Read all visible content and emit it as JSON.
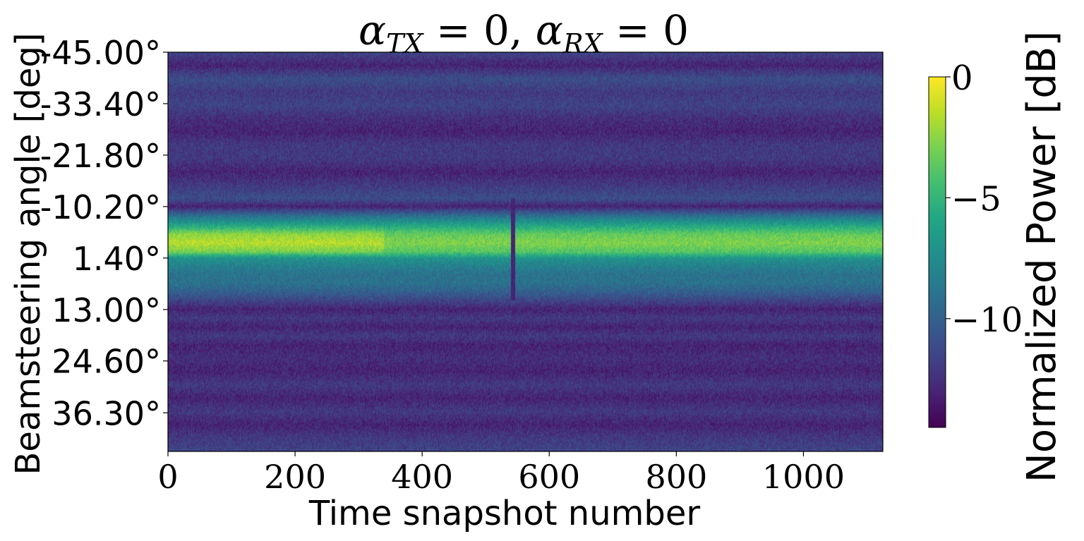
{
  "chart_data": {
    "type": "heatmap",
    "title": "α_TX = 0, α_RX = 0",
    "title_parts": {
      "alpha_tx": "α",
      "tx_sub": "TX",
      "eq1": " = 0, ",
      "alpha_rx": "α",
      "rx_sub": "RX",
      "eq2": " = 0"
    },
    "xlabel": "Time snapshot number",
    "ylabel": "Beamsteering angle [deg]",
    "xlim": [
      0,
      1125
    ],
    "x_ticks": [
      0,
      200,
      400,
      600,
      800,
      1000
    ],
    "ylim_deg": [
      -45.0,
      45.0
    ],
    "y_ticks": [
      -45.0,
      -33.4,
      -21.8,
      -10.2,
      1.4,
      13.0,
      24.6,
      36.3
    ],
    "y_tick_labels": [
      "-45.00°",
      "-33.40°",
      "-21.80°",
      "-10.20°",
      "1.40°",
      "13.00°",
      "24.60°",
      "36.30°"
    ],
    "colorbar": {
      "label": "Normalized Power [dB]",
      "range": [
        -14.5,
        0
      ],
      "ticks": [
        0,
        -5,
        -10
      ],
      "tick_labels": [
        "0",
        "−5",
        "−10"
      ],
      "colormap": "viridis"
    },
    "power_profile_db": {
      "angles_deg": [
        -45,
        -42,
        -39,
        -36,
        -33,
        -30,
        -27,
        -24,
        -21,
        -18,
        -15,
        -12,
        -10.2,
        -8,
        -6,
        -4,
        -2,
        0,
        1.4,
        3,
        5,
        7,
        9,
        11,
        13,
        15,
        17,
        19,
        21,
        24,
        27,
        30,
        33,
        36,
        39,
        42,
        45
      ],
      "power_db": [
        -11.5,
        -13,
        -11,
        -12,
        -11.5,
        -12.5,
        -13,
        -12,
        -12,
        -13,
        -12,
        -11,
        -13,
        -9,
        -6,
        -2.5,
        -1.5,
        -3,
        -7,
        -8,
        -9,
        -9,
        -10,
        -11.5,
        -13,
        -12,
        -13,
        -12,
        -13,
        -12.5,
        -13,
        -12,
        -13,
        -12,
        -13,
        -12,
        -11.5
      ]
    },
    "events": [
      {
        "snapshot": 543,
        "from_deg": -12,
        "to_deg": 11,
        "description_db": -13
      }
    ],
    "peak_fade": [
      {
        "snapshot_from": 0,
        "snapshot_to": 340,
        "peak_db": -0.8
      },
      {
        "snapshot_from": 340,
        "snapshot_to": 1125,
        "peak_db": -2.5
      }
    ]
  }
}
